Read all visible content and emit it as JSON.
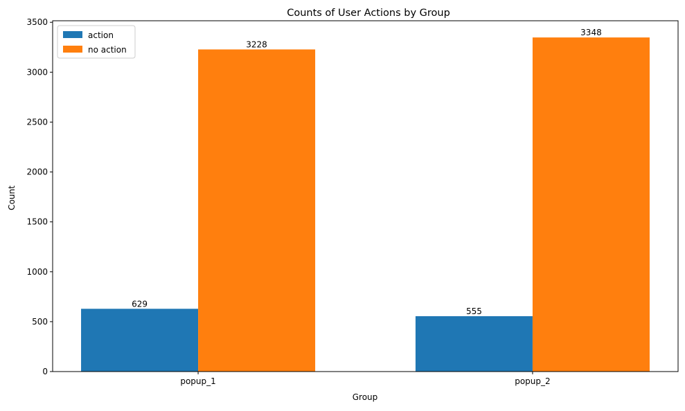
{
  "chart_data": {
    "type": "bar",
    "title": "Counts of User Actions by Group",
    "xlabel": "Group",
    "ylabel": "Count",
    "categories": [
      "popup_1",
      "popup_2"
    ],
    "series": [
      {
        "name": "action",
        "values": [
          629,
          555
        ],
        "color": "#1f77b4"
      },
      {
        "name": "no action",
        "values": [
          3228,
          3348
        ],
        "color": "#ff7f0e"
      }
    ],
    "ylim": [
      0,
      3515.4
    ],
    "yticks": [
      0,
      500,
      1000,
      1500,
      2000,
      2500,
      3000,
      3500
    ],
    "grid": false,
    "legend_position": "top-left",
    "data_labels": true
  }
}
